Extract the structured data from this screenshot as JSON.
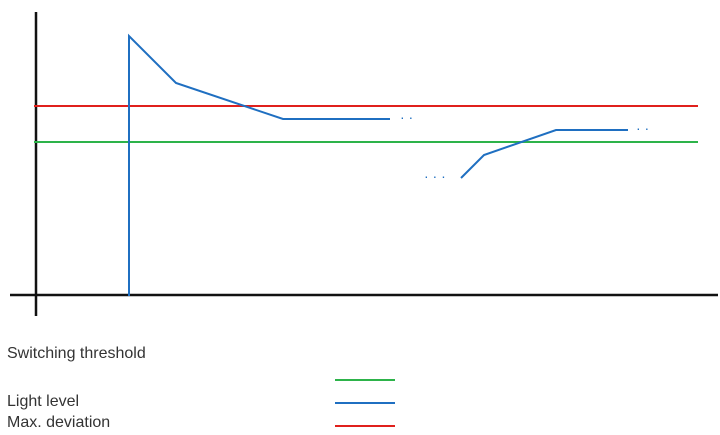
{
  "colors": {
    "axis": "#111111",
    "switching_threshold": "#2db34a",
    "light_level": "#1f6fc1",
    "max_deviation": "#e0201c"
  },
  "legend": {
    "switching_threshold": "Switching threshold",
    "light_level": "Light level",
    "max_deviation": "Max. deviation"
  },
  "ellipsis": "· ·",
  "ellipsis_long": "· · ·"
}
